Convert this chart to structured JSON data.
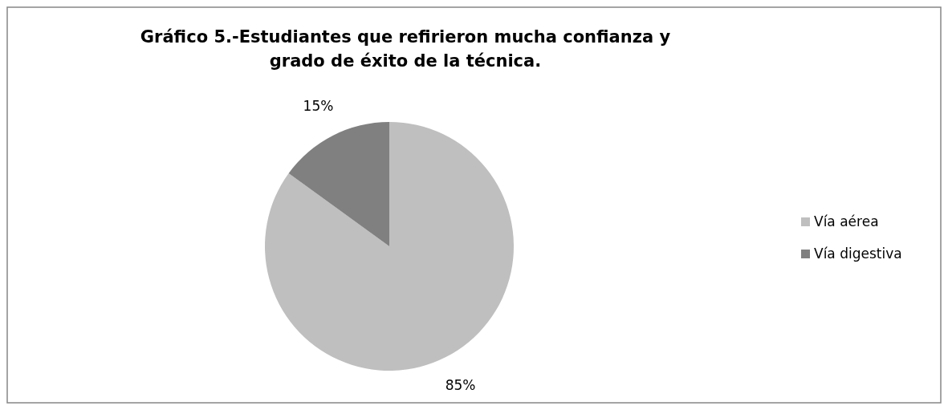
{
  "chart_data": {
    "type": "pie",
    "title": "Gráfico 5.-Estudiantes que refirieron mucha confianza y grado de éxito de la técnica.",
    "categories": [
      "Vía aérea",
      "Vía digestiva"
    ],
    "values": [
      85,
      15
    ],
    "value_labels": [
      "85%",
      "15%"
    ],
    "colors": [
      "#bfbfbf",
      "#808080"
    ],
    "legend": "right"
  }
}
